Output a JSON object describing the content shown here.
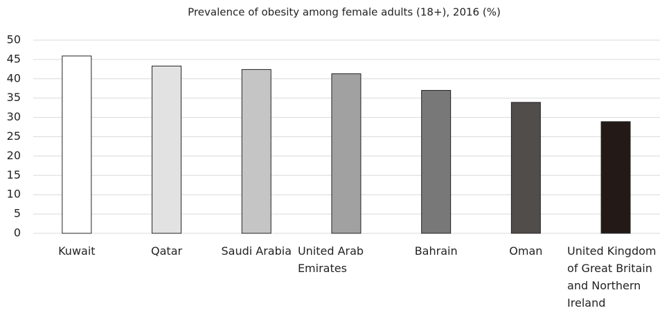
{
  "chart_data": {
    "type": "bar",
    "title": "Prevalence of obesity among female adults (18+), 2016 (%)",
    "categories": [
      "Kuwait",
      "Qatar",
      "Saudi Arabia",
      "United Arab Emirates",
      "Bahrain",
      "Oman",
      "United Kingdom of Great Britain and Northern Ireland"
    ],
    "values": [
      45.9,
      43.3,
      42.4,
      41.3,
      37.0,
      33.9,
      28.9
    ],
    "colors": [
      "#ffffff",
      "#e2e2e2",
      "#c4c5c4",
      "#a0a1a0",
      "#787878",
      "#514d4b",
      "#231a18"
    ],
    "ylim": [
      0,
      50
    ],
    "yticks": [
      0,
      5,
      10,
      15,
      20,
      25,
      30,
      35,
      40,
      45,
      50
    ],
    "grid": true
  }
}
